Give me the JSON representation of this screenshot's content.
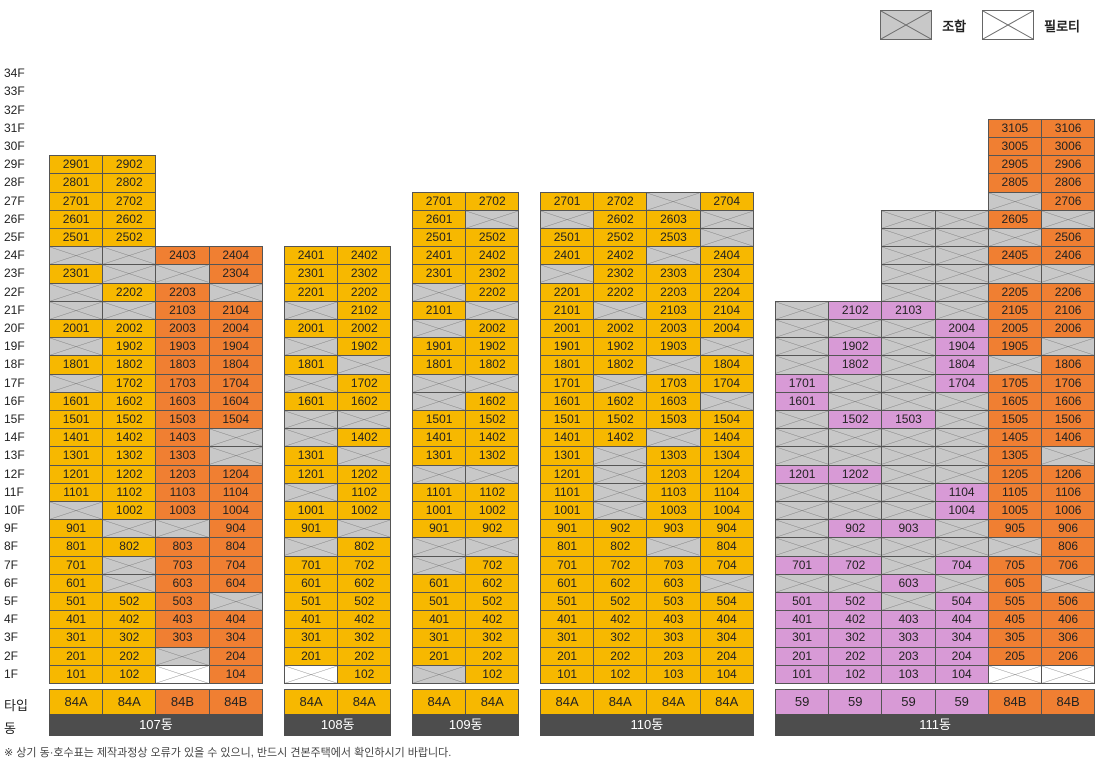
{
  "legend": [
    {
      "label": "조합",
      "fill": "#c8c8c8"
    },
    {
      "label": "필로티",
      "fill": "#ffffff"
    }
  ],
  "colors": {
    "84A": "#f7b800",
    "84B": "#f07f32",
    "59": "#d89ad6",
    "assoc": "#c8c8c8",
    "piloti": "#ffffff",
    "dong_bar": "#4d4d4d"
  },
  "floors": [
    "1F",
    "2F",
    "3F",
    "4F",
    "5F",
    "6F",
    "7F",
    "8F",
    "9F",
    "10F",
    "11F",
    "12F",
    "13F",
    "14F",
    "15F",
    "16F",
    "17F",
    "18F",
    "19F",
    "20F",
    "21F",
    "22F",
    "23F",
    "24F",
    "25F",
    "26F",
    "27F",
    "28F",
    "29F",
    "30F",
    "31F",
    "32F",
    "33F",
    "34F"
  ],
  "row_labels": {
    "type": "타입",
    "dong": "동"
  },
  "footnote": "※ 상기 동·호수표는 제작과정상 오류가 있을 수 있으니, 반드시 견본주택에서 확인하시기 바랍니다.",
  "buildings": [
    {
      "name": "107동",
      "columns": [
        {
          "type": "84A",
          "units": [
            "101",
            "201",
            "301",
            "401",
            "501",
            "601",
            "701",
            "801",
            "901",
            "X",
            "1101",
            "1201",
            "1301",
            "1401",
            "1501",
            "1601",
            "X",
            "1801",
            "X",
            "2001",
            "X",
            "X",
            "2301",
            "X",
            "2501",
            "2601",
            "2701",
            "2801",
            "2901"
          ]
        },
        {
          "type": "84A",
          "units": [
            "102",
            "202",
            "302",
            "402",
            "502",
            "X",
            "X",
            "802",
            "X",
            "1002",
            "1102",
            "1202",
            "1302",
            "1402",
            "1502",
            "1602",
            "1702",
            "1802",
            "1902",
            "2002",
            "X",
            "2202",
            "X",
            "X",
            "2502",
            "2602",
            "2702",
            "2802",
            "2902"
          ]
        },
        {
          "type": "84B",
          "units": [
            "P",
            "X",
            "303",
            "403",
            "503",
            "603",
            "703",
            "803",
            "X",
            "1003",
            "1103",
            "1203",
            "1303",
            "1403",
            "1503",
            "1603",
            "1703",
            "1803",
            "1903",
            "2003",
            "2103",
            "2203",
            "X",
            "2403"
          ]
        },
        {
          "type": "84B",
          "units": [
            "104",
            "204",
            "304",
            "404",
            "X",
            "604",
            "704",
            "804",
            "904",
            "1004",
            "1104",
            "1204",
            "X",
            "X",
            "1504",
            "1604",
            "1704",
            "1804",
            "1904",
            "2004",
            "2104",
            "X",
            "2304",
            "2404"
          ]
        }
      ]
    },
    {
      "name": "108동",
      "columns": [
        {
          "type": "84A",
          "units": [
            "P",
            "201",
            "301",
            "401",
            "501",
            "601",
            "701",
            "X",
            "901",
            "1001",
            "X",
            "1201",
            "1301",
            "X",
            "X",
            "1601",
            "X",
            "1801",
            "X",
            "2001",
            "X",
            "2201",
            "2301",
            "2401"
          ]
        },
        {
          "type": "84A",
          "units": [
            "102",
            "202",
            "302",
            "402",
            "502",
            "602",
            "702",
            "802",
            "X",
            "1002",
            "1102",
            "1202",
            "X",
            "1402",
            "X",
            "1602",
            "1702",
            "X",
            "1902",
            "2002",
            "2102",
            "2202",
            "2302",
            "2402"
          ]
        }
      ]
    },
    {
      "name": "109동",
      "columns": [
        {
          "type": "84A",
          "units": [
            "X",
            "201",
            "301",
            "401",
            "501",
            "601",
            "X",
            "X",
            "901",
            "1001",
            "1101",
            "X",
            "1301",
            "1401",
            "1501",
            "X",
            "X",
            "1801",
            "1901",
            "X",
            "2101",
            "X",
            "2301",
            "2401",
            "2501",
            "2601",
            "2701"
          ]
        },
        {
          "type": "84A",
          "units": [
            "102",
            "202",
            "302",
            "402",
            "502",
            "602",
            "702",
            "X",
            "902",
            "1002",
            "1102",
            "X",
            "1302",
            "1402",
            "1502",
            "1602",
            "X",
            "1802",
            "1902",
            "2002",
            "X",
            "2202",
            "2302",
            "2402",
            "2502",
            "X",
            "2702"
          ]
        }
      ]
    },
    {
      "name": "110동",
      "columns": [
        {
          "type": "84A",
          "units": [
            "101",
            "201",
            "301",
            "401",
            "501",
            "601",
            "701",
            "801",
            "901",
            "1001",
            "1101",
            "1201",
            "1301",
            "1401",
            "1501",
            "1601",
            "1701",
            "1801",
            "1901",
            "2001",
            "2101",
            "2201",
            "X",
            "2401",
            "2501",
            "X",
            "2701"
          ]
        },
        {
          "type": "84A",
          "units": [
            "102",
            "202",
            "302",
            "402",
            "502",
            "602",
            "702",
            "802",
            "902",
            "X",
            "X",
            "X",
            "X",
            "1402",
            "1502",
            "1602",
            "X",
            "1802",
            "1902",
            "2002",
            "X",
            "2202",
            "2302",
            "2402",
            "2502",
            "2602",
            "2702"
          ]
        },
        {
          "type": "84A",
          "units": [
            "103",
            "203",
            "303",
            "403",
            "503",
            "603",
            "703",
            "X",
            "903",
            "1003",
            "1103",
            "1203",
            "1303",
            "X",
            "1503",
            "1603",
            "1703",
            "X",
            "1903",
            "2003",
            "2103",
            "2203",
            "2303",
            "X",
            "2503",
            "2603",
            "X"
          ]
        },
        {
          "type": "84A",
          "units": [
            "104",
            "204",
            "304",
            "404",
            "504",
            "X",
            "704",
            "804",
            "904",
            "1004",
            "1104",
            "1204",
            "1304",
            "1404",
            "1504",
            "X",
            "1704",
            "1804",
            "X",
            "2004",
            "2104",
            "2204",
            "2304",
            "2404",
            "X",
            "X",
            "2704"
          ]
        }
      ]
    },
    {
      "name": "111동",
      "columns": [
        {
          "type": "59",
          "units": [
            "101",
            "201",
            "301",
            "401",
            "501",
            "X",
            "701",
            "X",
            "X",
            "X",
            "X",
            "1201",
            "X",
            "X",
            "X",
            "1601",
            "1701",
            "X",
            "X",
            "X",
            "X"
          ]
        },
        {
          "type": "59",
          "units": [
            "102",
            "202",
            "302",
            "402",
            "502",
            "X",
            "702",
            "X",
            "902",
            "X",
            "X",
            "1202",
            "X",
            "X",
            "1502",
            "X",
            "X",
            "1802",
            "1902",
            "X",
            "2102"
          ]
        },
        {
          "type": "59",
          "units": [
            "103",
            "203",
            "303",
            "403",
            "X",
            "603",
            "X",
            "X",
            "903",
            "X",
            "X",
            "X",
            "X",
            "X",
            "1503",
            "X",
            "X",
            "X",
            "X",
            "X",
            "2103",
            "X",
            "X",
            "X",
            "X",
            "X"
          ]
        },
        {
          "type": "59",
          "units": [
            "104",
            "204",
            "304",
            "404",
            "504",
            "X",
            "704",
            "X",
            "X",
            "1004",
            "1104",
            "X",
            "X",
            "X",
            "X",
            "X",
            "1704",
            "1804",
            "1904",
            "2004",
            "X",
            "X",
            "X",
            "X",
            "X",
            "X"
          ]
        },
        {
          "type": "84B",
          "units": [
            "P",
            "205",
            "305",
            "405",
            "505",
            "605",
            "705",
            "X",
            "905",
            "1005",
            "1105",
            "1205",
            "1305",
            "1405",
            "1505",
            "1605",
            "1705",
            "X",
            "1905",
            "2005",
            "2105",
            "2205",
            "X",
            "2405",
            "X",
            "2605",
            "X",
            "2805",
            "2905",
            "3005",
            "3105"
          ]
        },
        {
          "type": "84B",
          "units": [
            "P",
            "206",
            "306",
            "406",
            "506",
            "X",
            "706",
            "806",
            "906",
            "1006",
            "1106",
            "1206",
            "X",
            "1406",
            "1506",
            "1606",
            "1706",
            "1806",
            "X",
            "2006",
            "2106",
            "2206",
            "X",
            "2406",
            "2506",
            "X",
            "2706",
            "2806",
            "2906",
            "3006",
            "3106"
          ]
        }
      ]
    }
  ]
}
